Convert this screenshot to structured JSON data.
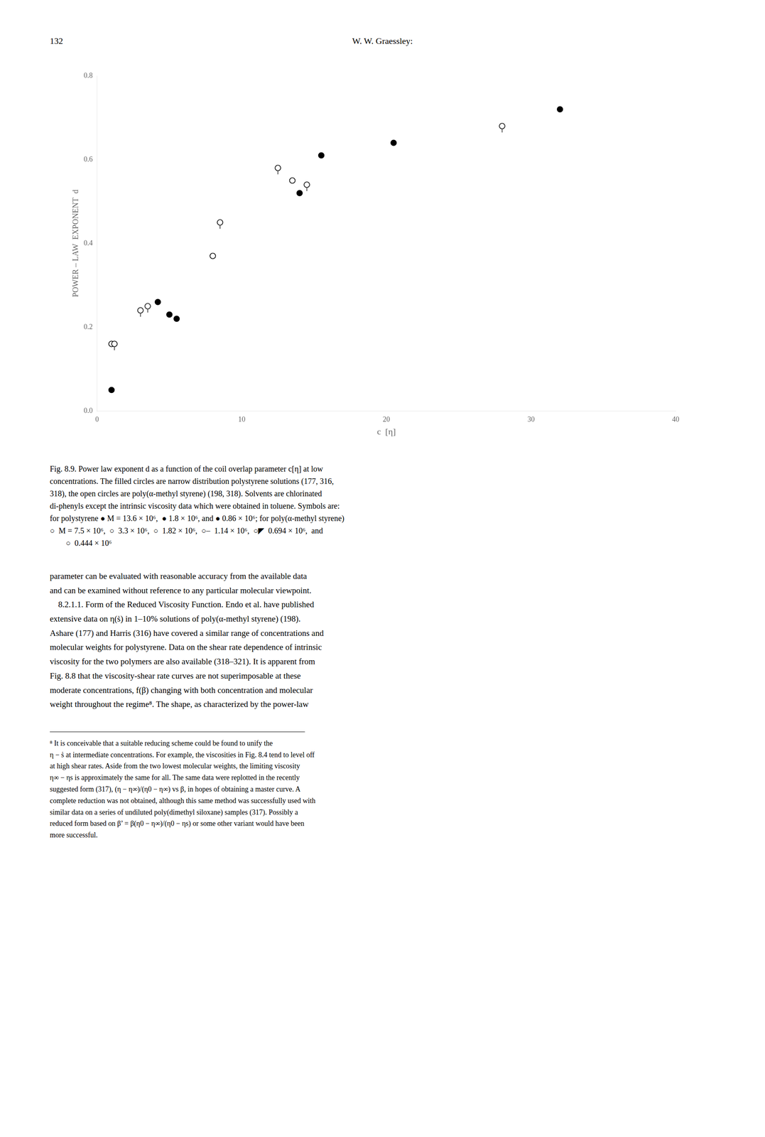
{
  "page_header_left": "132",
  "page_header_center": "W. W. Graessley:",
  "chart_data": {
    "type": "scatter",
    "xlabel": "c  [η]",
    "ylabel": "POWER – LAW  EXPONENT  d",
    "xlim": [
      0,
      40
    ],
    "ylim": [
      0,
      0.8
    ],
    "xticks": [
      0,
      10,
      20,
      30,
      40
    ],
    "yticks": [
      {
        "value": 0,
        "label": "0.0"
      },
      {
        "value": 0.2,
        "label": "0.2"
      },
      {
        "value": 0.4,
        "label": "0.4"
      },
      {
        "value": 0.6,
        "label": "0.6"
      },
      {
        "value": 0.8,
        "label": "0.8"
      }
    ],
    "grid": false,
    "series": [
      {
        "marker": "circle",
        "color": "#000000",
        "x": [
          1.0,
          4.2,
          5.0,
          5.5,
          14.0,
          15.5,
          20.5,
          32.0
        ],
        "values": [
          0.05,
          0.26,
          0.23,
          0.22,
          0.52,
          0.61,
          0.64,
          0.72
        ]
      },
      {
        "marker": "open_circle_tick",
        "color": "#000000",
        "x": [
          1.2,
          3.0,
          3.5,
          8.5,
          12.5,
          14.5,
          28.0
        ],
        "values": [
          0.16,
          0.24,
          0.25,
          0.45,
          0.58,
          0.54,
          0.68
        ]
      },
      {
        "marker": "open_circle",
        "color": "#000000",
        "x": [
          1.0,
          8.0,
          13.5
        ],
        "values": [
          0.16,
          0.37,
          0.55
        ]
      }
    ]
  },
  "caption": "Fig. 8.9. Power law exponent d as a function of the coil overlap parameter c[η] at low\nconcentrations. The filled circles are narrow distribution polystyrene solutions (177, 316,\n318), the open circles are poly(α-methyl styrene) (198, 318). Solvents are chlorinated\ndi-phenyls except the intrinsic viscosity data which were obtained in toluene. Symbols are:\nfor polystyrene ● M = 13.6 × 10⁶,  ● 1.8 × 10⁶, and ● 0.86 × 10⁶; for poly(α-methyl styrene)\n○  M = 7.5 × 10⁶,  ○  3.3 × 10⁶,  ○  1.82 × 10⁶,  ○–  1.14 × 10⁶,  ○◤  0.694 × 10⁶,  and\n        ○  0.444 × 10⁶",
  "body_text": "parameter can be evaluated with reasonable accuracy from the available data\nand can be examined without reference to any particular molecular viewpoint.\n    8.2.1.1. Form of the Reduced Viscosity Function. Endo et al. have published\nextensive data on η(ṡ) in 1–10% solutions of poly(α-methyl styrene) (198).\nAshare (177) and Harris (316) have covered a similar range of concentrations and\nmolecular weights for polystyrene. Data on the shear rate dependence of intrinsic\nviscosity for the two polymers are also available (318–321). It is apparent from\nFig. 8.8 that the viscosity-shear rate curves are not superimposable at these\nmoderate concentrations, f(β) changing with both concentration and molecular\nweight throughout the regime⁸. The shape, as characterized by the power-law",
  "footnote": "⁸ It is conceivable that a suitable reducing scheme could be found to unify the\nη − ṡ at intermediate concentrations. For example, the viscosities in Fig. 8.4 tend to level off\nat high shear rates. Aside from the two lowest molecular weights, the limiting viscosity\nη∞ − ηs is approximately the same for all. The same data were replotted in the recently\nsuggested form (317), (η − η∞)/(η0 − η∞) vs β, in hopes of obtaining a master curve. A\ncomplete reduction was not obtained, although this same method was successfully used with\nsimilar data on a series of undiluted poly(dimethyl siloxane) samples (317). Possibly a\nreduced form based on β’ = β(η0 − η∞)/(η0 − ηs) or some other variant would have been\nmore successful."
}
